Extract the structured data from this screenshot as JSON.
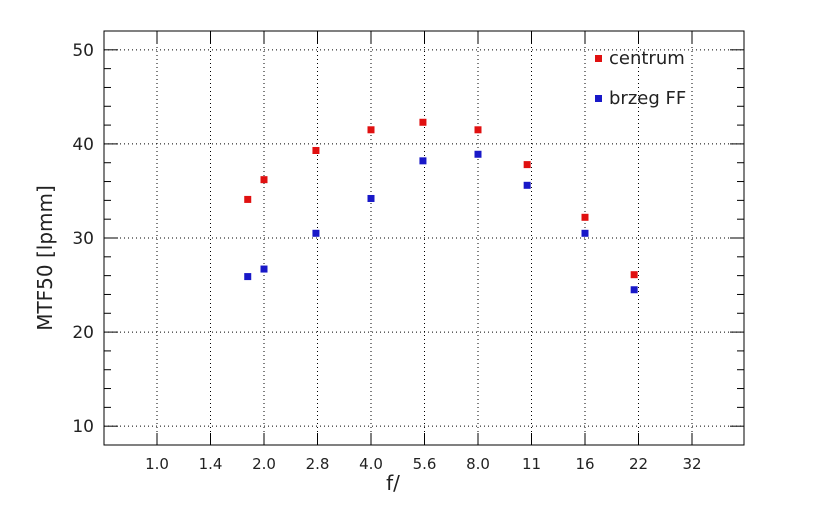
{
  "chart_data": {
    "type": "scatter",
    "xlabel": "f/",
    "ylabel": "MTF50 [lpmm]",
    "x_tick_labels": [
      "1.0",
      "1.4",
      "2.0",
      "2.8",
      "4.0",
      "5.6",
      "8.0",
      "11",
      "16",
      "22",
      "32"
    ],
    "y_ticks": [
      10,
      20,
      30,
      40,
      50
    ],
    "ylim": [
      8,
      52
    ],
    "x_scale": "log2 (f-stops)",
    "grid": true,
    "legend_position": "top-right",
    "series": [
      {
        "name": "centrum",
        "color": "#e01010",
        "x": [
          1.8,
          2.0,
          2.8,
          4.0,
          5.6,
          8.0,
          11,
          16,
          22
        ],
        "y": [
          34.1,
          36.2,
          39.3,
          41.5,
          42.3,
          41.5,
          37.8,
          32.2,
          26.1
        ]
      },
      {
        "name": "brzeg FF",
        "color": "#1818c8",
        "x": [
          1.8,
          2.0,
          2.8,
          4.0,
          5.6,
          8.0,
          11,
          16,
          22
        ],
        "y": [
          25.9,
          26.7,
          30.5,
          34.2,
          38.2,
          38.9,
          35.6,
          30.5,
          24.5
        ]
      }
    ]
  }
}
